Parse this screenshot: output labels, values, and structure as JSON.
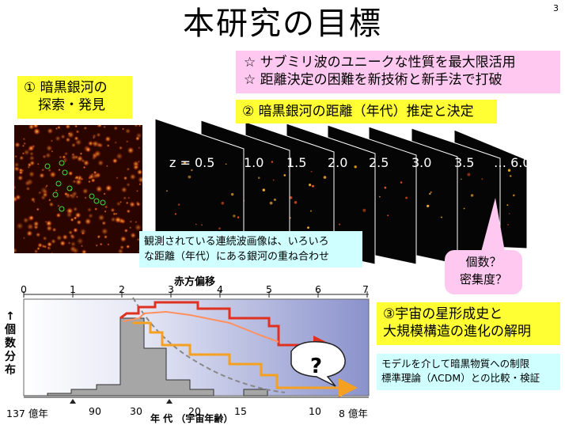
{
  "slide": {
    "title": "本研究の目標",
    "page_number": "3"
  },
  "objectives": {
    "line1": "☆ サブミリ波のユニークな性質を最大限活用",
    "line2": "☆ 距離決定の困難を新技術と新手法で打破"
  },
  "discovery": {
    "line1": "① 暗黒銀河の",
    "line2": "探索・発見"
  },
  "distance": {
    "label": "② 暗黒銀河の距離（年代）推定と決定"
  },
  "redshift_panels": [
    "z = 0.5",
    "1.0",
    "1.5",
    "2.0",
    "2.5",
    "3.0",
    "3.5",
    "…  6.0…"
  ],
  "superposition": {
    "line1": "観測されている連続波画像は、いろいろ",
    "line2": "な距離（年代）にある銀河の重ね合わせ"
  },
  "callout": {
    "line1": "個数？",
    "line2": "密集度？"
  },
  "formation": {
    "line1": "③宇宙の星形成史と",
    "line2": "大規模構造の進化の解明"
  },
  "model": {
    "line1": "モデルを介して暗黒物質への制限",
    "line2": "標準理論（ΛCDM）との比較・検証"
  },
  "chart": {
    "top_axis_title": "赤方偏移",
    "top_ticks": [
      "0",
      "1",
      "2",
      "3",
      "4",
      "5",
      "6",
      "7"
    ],
    "bottom_axis_title": "年 代 （宇宙年齢）",
    "bottom_ticks": [
      "137 億年",
      "90",
      "30",
      "20",
      "15",
      "10",
      "8 億年"
    ],
    "y_label": "↑個数分布",
    "question": "?"
  },
  "colors": {
    "yellow": "#ffff33",
    "pink": "#ffc8f0",
    "cyan": "#cfffff",
    "red_curve": "#e03020",
    "orange_curve": "#f5a020"
  }
}
